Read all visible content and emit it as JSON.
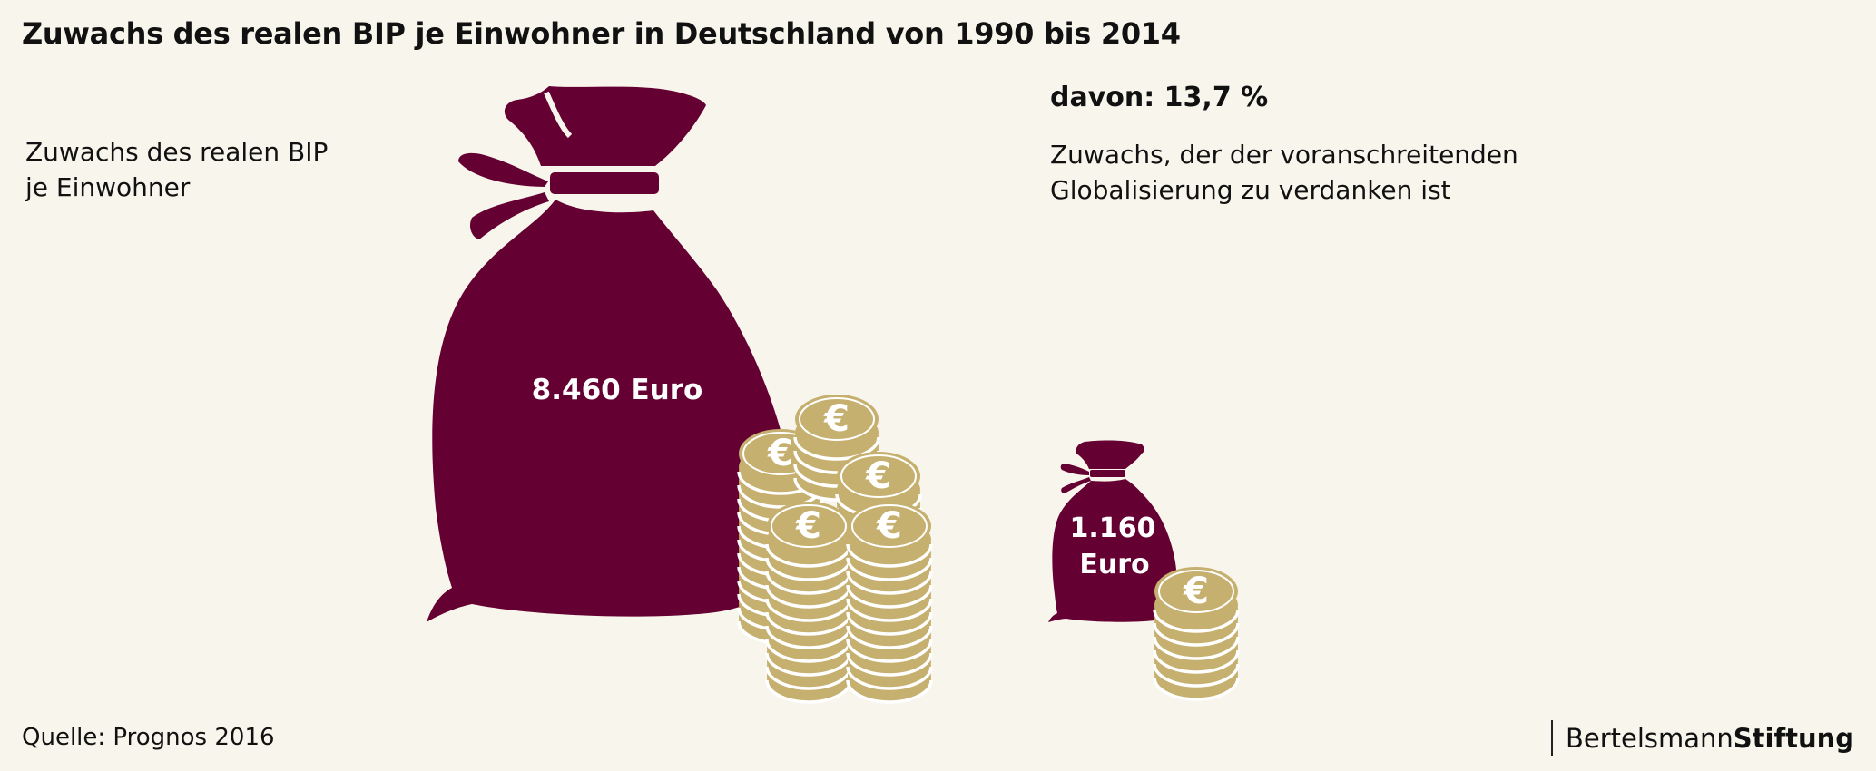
{
  "title": "Zuwachs des realen BIP je Einwohner in Deutschland von 1990 bis 2014",
  "left_label": [
    "Zuwachs des realen BIP",
    "je Einwohner"
  ],
  "big_bag": {
    "value_label": "8.460 Euro"
  },
  "small_bag": {
    "value_label_line1": "1.160",
    "value_label_line2": "Euro"
  },
  "right": {
    "davon": "davon: 13,7 %",
    "description": [
      "Zuwachs, der der voranschreitenden",
      "Globalisierung zu verdanken ist"
    ]
  },
  "source": "Quelle: Prognos 2016",
  "brand": {
    "part1": "Bertelsmann",
    "part2": "Stiftung"
  },
  "colors": {
    "bag": "#650032",
    "coin": "#c6b06f",
    "background": "#f8f5ec"
  },
  "icons": [
    "money-bag-icon",
    "euro-coin-icon"
  ]
}
